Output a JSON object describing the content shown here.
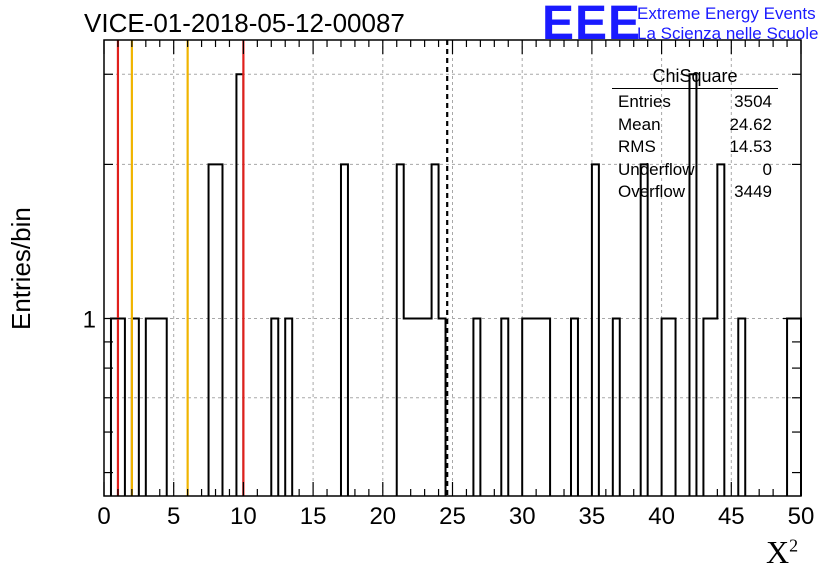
{
  "chart_data": {
    "type": "histogram",
    "title": "VICE-01-2018-05-12-00087",
    "xlabel": "X",
    "xlabel_superscript": "2",
    "ylabel": "Entries/bin",
    "xlim": [
      0,
      50
    ],
    "y_scale": "log",
    "ylim": [
      0.45,
      3.5
    ],
    "grid": true,
    "x_ticks": [
      "0",
      "5",
      "10",
      "15",
      "20",
      "25",
      "30",
      "35",
      "40",
      "45",
      "50"
    ],
    "y_tick_labels": [
      "1"
    ],
    "bin_width": 0.5,
    "bins": [
      {
        "x0": 0.5,
        "x1": 1.5,
        "y": 1
      },
      {
        "x0": 2.0,
        "x1": 2.5,
        "y": 1
      },
      {
        "x0": 3.0,
        "x1": 4.5,
        "y": 1
      },
      {
        "x0": 7.5,
        "x1": 8.5,
        "y": 2
      },
      {
        "x0": 9.5,
        "x1": 10.0,
        "y": 3
      },
      {
        "x0": 12.0,
        "x1": 12.5,
        "y": 1
      },
      {
        "x0": 13.0,
        "x1": 13.5,
        "y": 1
      },
      {
        "x0": 17.0,
        "x1": 17.5,
        "y": 2
      },
      {
        "x0": 21.0,
        "x1": 21.5,
        "y": 2
      },
      {
        "x0": 21.5,
        "x1": 23.5,
        "y": 1
      },
      {
        "x0": 23.5,
        "x1": 24.0,
        "y": 2
      },
      {
        "x0": 24.0,
        "x1": 24.5,
        "y": 1
      },
      {
        "x0": 26.5,
        "x1": 27.0,
        "y": 1
      },
      {
        "x0": 28.5,
        "x1": 29.0,
        "y": 1
      },
      {
        "x0": 30.0,
        "x1": 32.0,
        "y": 1
      },
      {
        "x0": 33.5,
        "x1": 34.0,
        "y": 1
      },
      {
        "x0": 35.0,
        "x1": 35.5,
        "y": 2
      },
      {
        "x0": 36.5,
        "x1": 37.0,
        "y": 1
      },
      {
        "x0": 38.5,
        "x1": 39.0,
        "y": 2
      },
      {
        "x0": 40.0,
        "x1": 41.0,
        "y": 1
      },
      {
        "x0": 42.0,
        "x1": 42.5,
        "y": 3
      },
      {
        "x0": 43.0,
        "x1": 44.0,
        "y": 1
      },
      {
        "x0": 44.0,
        "x1": 44.5,
        "y": 2
      },
      {
        "x0": 45.5,
        "x1": 46.0,
        "y": 1
      },
      {
        "x0": 49.0,
        "x1": 50.0,
        "y": 1
      }
    ],
    "vertical_lines": [
      {
        "x": 1.0,
        "color": "#e0201c",
        "style": "solid"
      },
      {
        "x": 2.0,
        "color": "#f0b400",
        "style": "solid"
      },
      {
        "x": 6.0,
        "color": "#f0b400",
        "style": "solid"
      },
      {
        "x": 10.0,
        "color": "#e0201c",
        "style": "solid"
      },
      {
        "x": 24.62,
        "color": "#000000",
        "style": "dashed"
      }
    ],
    "stats": {
      "name": "ChiSquare",
      "rows": [
        {
          "label": "Entries",
          "value": "3504"
        },
        {
          "label": "Mean",
          "value": "24.62"
        },
        {
          "label": "RMS",
          "value": "14.53"
        },
        {
          "label": "Underflow",
          "value": "0"
        },
        {
          "label": "Overflow",
          "value": "3449"
        }
      ]
    }
  },
  "logo": {
    "mark": "EEE",
    "line1": "Extreme Energy Events",
    "line2": "La Scienza nelle Scuole"
  }
}
